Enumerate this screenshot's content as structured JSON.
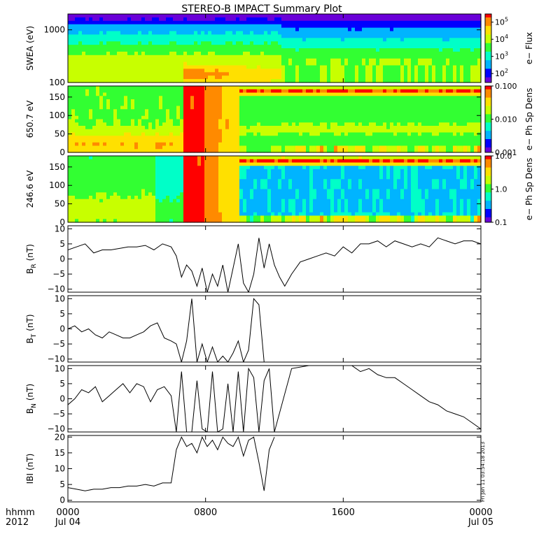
{
  "title": "STEREO-B IMPACT Summary Plot",
  "timestamp": "Fri Jan 11 03:54:18 2013",
  "x_axis": {
    "label_line1": "hhmm",
    "label_line2": "2012",
    "ticks": [
      {
        "hour": 0,
        "line1": "0000",
        "line2": "Jul 04"
      },
      {
        "hour": 8,
        "line1": "0800",
        "line2": ""
      },
      {
        "hour": 16,
        "line1": "1600",
        "line2": ""
      },
      {
        "hour": 24,
        "line1": "0000",
        "line2": "Jul 05"
      }
    ],
    "range_hours": [
      0,
      24
    ]
  },
  "colors": {
    "spectrogram_ramp": [
      "#6a00d8",
      "#0000ff",
      "#00b4ff",
      "#00ffc8",
      "#32ff32",
      "#c8ff00",
      "#ffe000",
      "#ff8a00",
      "#ff0000"
    ],
    "line": "#000000"
  },
  "chart_data": [
    {
      "type": "heatmap",
      "ylabel": "SWEA (eV)",
      "ylim": [
        100,
        2000
      ],
      "yscale": "log",
      "yticks": [
        {
          "value": 100,
          "label": "100"
        },
        {
          "value": 1000,
          "label": "1000"
        }
      ],
      "colorbar": {
        "label": "e− Flux",
        "scale": "log",
        "range": [
          30,
          300000
        ],
        "ticks": [
          {
            "value": 100,
            "base": "10",
            "exp": "2"
          },
          {
            "value": 1000,
            "base": "10",
            "exp": "3"
          },
          {
            "value": 10000,
            "base": "10",
            "exp": "4"
          },
          {
            "value": 100000,
            "base": "10",
            "exp": "5"
          }
        ]
      }
    },
    {
      "type": "heatmap",
      "ylabel": "650.7 eV",
      "ylim": [
        0,
        180
      ],
      "yticks": [
        {
          "value": 0,
          "label": "0"
        },
        {
          "value": 50,
          "label": "50"
        },
        {
          "value": 100,
          "label": "100"
        },
        {
          "value": 150,
          "label": "150"
        }
      ],
      "colorbar": {
        "label": "e− Ph Sp Dens",
        "scale": "log",
        "range": [
          0.001,
          0.1
        ],
        "ticks": [
          {
            "value": 0.001,
            "label": "0.001"
          },
          {
            "value": 0.01,
            "label": "0.010"
          },
          {
            "value": 0.1,
            "label": "0.100"
          }
        ]
      }
    },
    {
      "type": "heatmap",
      "ylabel": "246.6 eV",
      "ylim": [
        0,
        180
      ],
      "yticks": [
        {
          "value": 0,
          "label": "0"
        },
        {
          "value": 50,
          "label": "50"
        },
        {
          "value": 100,
          "label": "100"
        },
        {
          "value": 150,
          "label": "150"
        }
      ],
      "colorbar": {
        "label": "e− Ph Sp Dens",
        "scale": "log",
        "range": [
          0.1,
          10
        ],
        "ticks": [
          {
            "value": 0.1,
            "label": "0.1"
          },
          {
            "value": 1,
            "label": "1.0"
          },
          {
            "value": 10,
            "label": "10.0"
          }
        ]
      }
    },
    {
      "type": "line",
      "ylabel_main": "B",
      "ylabel_sub": "R",
      "ylabel_unit": "(nT)",
      "ylim": [
        -11,
        11
      ],
      "yticks": [
        {
          "value": -10,
          "label": "−10"
        },
        {
          "value": -5,
          "label": "−5"
        },
        {
          "value": 0,
          "label": "0"
        },
        {
          "value": 5,
          "label": "5"
        },
        {
          "value": 10,
          "label": "10"
        }
      ],
      "x": [
        0,
        0.5,
        1,
        1.5,
        2,
        2.5,
        3,
        3.5,
        4,
        4.5,
        5,
        5.5,
        6,
        6.3,
        6.6,
        6.9,
        7.2,
        7.5,
        7.8,
        8.1,
        8.4,
        8.7,
        9,
        9.3,
        9.6,
        9.9,
        10.2,
        10.5,
        10.8,
        11.1,
        11.4,
        11.7,
        12,
        12.3,
        12.6,
        13,
        13.5,
        14,
        14.5,
        15,
        15.5,
        16,
        16.5,
        17,
        17.5,
        18,
        18.5,
        19,
        19.5,
        20,
        20.5,
        21,
        21.5,
        22,
        22.5,
        23,
        23.5,
        24
      ],
      "y": [
        3,
        4,
        5,
        2,
        3,
        3,
        3.5,
        4,
        4,
        4.5,
        3,
        5,
        4,
        1,
        -6,
        -2,
        -4,
        -9,
        -3,
        -11,
        -5,
        -9,
        -2,
        -11,
        -3,
        5,
        -8,
        -11,
        -5,
        7,
        -3,
        5,
        -2,
        -6,
        -9,
        -5,
        -1,
        0,
        1,
        2,
        1,
        4,
        2,
        5,
        5,
        6,
        4,
        6,
        5,
        4,
        5,
        4,
        7,
        6,
        5,
        6,
        6,
        5
      ]
    },
    {
      "type": "line",
      "ylabel_main": "B",
      "ylabel_sub": "T",
      "ylabel_unit": "(nT)",
      "ylim": [
        -11,
        11
      ],
      "yticks": [
        {
          "value": -10,
          "label": "−10"
        },
        {
          "value": -5,
          "label": "−5"
        },
        {
          "value": 0,
          "label": "0"
        },
        {
          "value": 5,
          "label": "5"
        },
        {
          "value": 10,
          "label": "10"
        }
      ],
      "x": [
        0,
        0.4,
        0.8,
        1.2,
        1.6,
        2,
        2.4,
        2.8,
        3.2,
        3.6,
        4,
        4.4,
        4.8,
        5.2,
        5.6,
        6,
        6.3,
        6.6,
        6.9,
        7.2,
        7.5,
        7.8,
        8.1,
        8.4,
        8.7,
        9,
        9.3,
        9.6,
        9.9,
        10.2,
        10.5,
        10.8,
        11.1,
        11.4,
        11.7,
        12.0
      ],
      "y": [
        0,
        1,
        -1,
        0,
        -2,
        -3,
        -1,
        -2,
        -3,
        -3,
        -2,
        -1,
        1,
        2,
        -3,
        -4,
        -5,
        -11,
        -4,
        10,
        -11,
        -5,
        -11,
        -6,
        -11,
        -9,
        -11,
        -8,
        -4,
        -11,
        -7,
        10,
        8,
        -11,
        -11,
        -11
      ]
    },
    {
      "type": "line",
      "ylabel_main": "B",
      "ylabel_sub": "N",
      "ylabel_unit": "(nT)",
      "ylim": [
        -11,
        11
      ],
      "yticks": [
        {
          "value": -10,
          "label": "−10"
        },
        {
          "value": -5,
          "label": "−5"
        },
        {
          "value": 0,
          "label": "0"
        },
        {
          "value": 5,
          "label": "5"
        },
        {
          "value": 10,
          "label": "10"
        }
      ],
      "x": [
        0,
        0.4,
        0.8,
        1.2,
        1.6,
        2,
        2.4,
        2.8,
        3.2,
        3.6,
        4,
        4.4,
        4.8,
        5.2,
        5.6,
        6,
        6.3,
        6.6,
        6.9,
        7.2,
        7.5,
        7.8,
        8.1,
        8.4,
        8.7,
        9,
        9.3,
        9.6,
        9.9,
        10.2,
        10.5,
        10.8,
        11.1,
        11.4,
        11.7,
        12.0,
        13,
        14,
        15,
        16,
        16.5,
        17,
        17.5,
        18,
        18.5,
        19,
        19.5,
        20,
        20.5,
        21,
        21.5,
        22,
        22.5,
        23,
        23.5,
        24
      ],
      "y": [
        -2,
        0,
        3,
        2,
        4,
        -1,
        1,
        3,
        5,
        2,
        5,
        4,
        -1,
        3,
        4,
        1,
        -11,
        9,
        -11,
        -11,
        6,
        -10,
        -11,
        9,
        -11,
        -10,
        5,
        -11,
        9,
        -11,
        10,
        7,
        -11,
        6,
        10,
        -11,
        10,
        11,
        11,
        11,
        11,
        9,
        10,
        8,
        7,
        7,
        5,
        3,
        1,
        -1,
        -2,
        -4,
        -5,
        -6,
        -8,
        -10
      ]
    },
    {
      "type": "line",
      "ylabel_main": "IBI",
      "ylabel_sub": "",
      "ylabel_unit": "(nT)",
      "ylim": [
        -0.5,
        20.5
      ],
      "yticks": [
        {
          "value": 0,
          "label": "0"
        },
        {
          "value": 5,
          "label": "5"
        },
        {
          "value": 10,
          "label": "10"
        },
        {
          "value": 15,
          "label": "15"
        },
        {
          "value": 20,
          "label": "20"
        }
      ],
      "x": [
        0,
        0.5,
        1,
        1.5,
        2,
        2.5,
        3,
        3.5,
        4,
        4.5,
        5,
        5.5,
        6,
        6.3,
        6.6,
        6.9,
        7.2,
        7.5,
        7.8,
        8.1,
        8.4,
        8.7,
        9,
        9.3,
        9.6,
        9.9,
        10.2,
        10.5,
        10.8,
        11.1,
        11.4,
        11.7,
        12.0
      ],
      "y": [
        4,
        3.5,
        3,
        3.5,
        3.5,
        4,
        4,
        4.5,
        4.5,
        5,
        4.5,
        5.5,
        5.5,
        16,
        20,
        17,
        18,
        15,
        20,
        17,
        19,
        16,
        20,
        18,
        17,
        20,
        14,
        19,
        20,
        12,
        3,
        16,
        20
      ]
    }
  ]
}
